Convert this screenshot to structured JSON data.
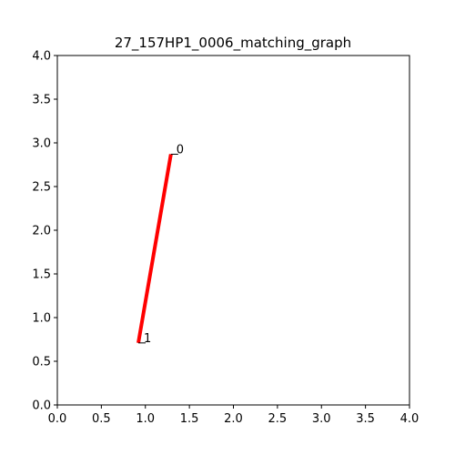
{
  "chart_data": {
    "type": "line",
    "title": "27_157HP1_0006_matching_graph",
    "xlabel": "",
    "ylabel": "",
    "xlim": [
      0,
      4
    ],
    "ylim": [
      0,
      4
    ],
    "x_ticks": [
      "0.0",
      "0.5",
      "1.0",
      "1.5",
      "2.0",
      "2.5",
      "3.0",
      "3.5",
      "4.0"
    ],
    "y_ticks": [
      "0.0",
      "0.5",
      "1.0",
      "1.5",
      "2.0",
      "2.5",
      "3.0",
      "3.5",
      "4.0"
    ],
    "grid": false,
    "nodes": [
      {
        "label": "0",
        "x": 1.29,
        "y": 2.87
      },
      {
        "label": "1",
        "x": 0.92,
        "y": 0.71
      }
    ],
    "edges": [
      {
        "from": 0,
        "to": 1,
        "color": "#ff0000"
      }
    ],
    "node_marker_color": "#000000"
  }
}
